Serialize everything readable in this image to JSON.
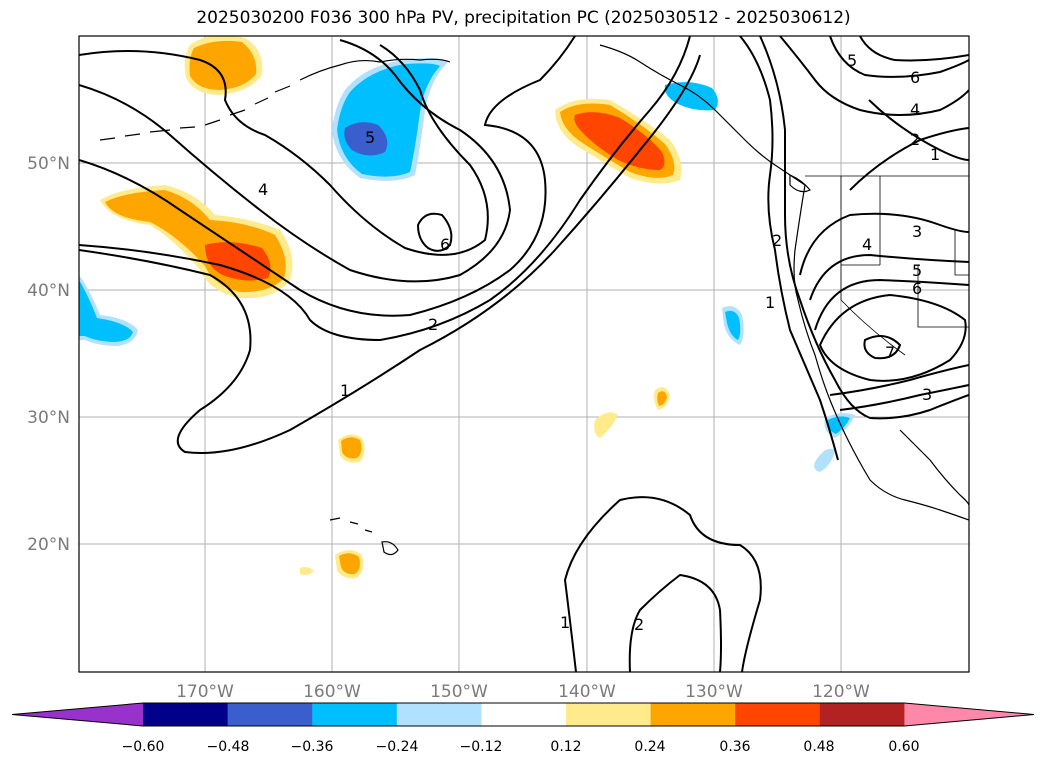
{
  "title": "2025030200 F036 300 hPa PV, precipitation PC (2025030512 - 2025030612)",
  "lon_labels": [
    "170°W",
    "160°W",
    "150°W",
    "140°W",
    "130°W",
    "120°W"
  ],
  "lat_labels": [
    "50°N",
    "40°N",
    "30°N",
    "20°N"
  ],
  "colorbar": {
    "tick_labels": [
      "−0.60",
      "−0.48",
      "−0.36",
      "−0.24",
      "−0.12",
      "0.12",
      "0.24",
      "0.36",
      "0.48",
      "0.60"
    ],
    "colors": [
      "#9932cc",
      "#00008b",
      "#3a5fcd",
      "#00bfff",
      "#b0e2ff",
      "#ffffff",
      "#ffea8c",
      "#ffa500",
      "#ff4500",
      "#b22222",
      "#ff88aa"
    ]
  },
  "contour_labels": [
    {
      "id": "c-4-w",
      "text": "4"
    },
    {
      "id": "c-5-w",
      "text": "5"
    },
    {
      "id": "c-6-w",
      "text": "6"
    },
    {
      "id": "c-2-mid",
      "text": "2"
    },
    {
      "id": "c-1-mid",
      "text": "1"
    },
    {
      "id": "c-1-s",
      "text": "1"
    },
    {
      "id": "c-2-s",
      "text": "2"
    },
    {
      "id": "c-5-ne",
      "text": "5"
    },
    {
      "id": "c-6-ne",
      "text": "6"
    },
    {
      "id": "c-4-ne",
      "text": "4"
    },
    {
      "id": "c-2-ne",
      "text": "2"
    },
    {
      "id": "c-1-ne",
      "text": "1"
    },
    {
      "id": "c-2-e",
      "text": "2"
    },
    {
      "id": "c-1-e",
      "text": "1"
    },
    {
      "id": "c-4-e",
      "text": "4"
    },
    {
      "id": "c-3-e",
      "text": "3"
    },
    {
      "id": "c-5-e",
      "text": "5"
    },
    {
      "id": "c-6-e",
      "text": "6"
    },
    {
      "id": "c-7-e",
      "text": "7"
    },
    {
      "id": "c-3-se",
      "text": "3"
    }
  ]
}
